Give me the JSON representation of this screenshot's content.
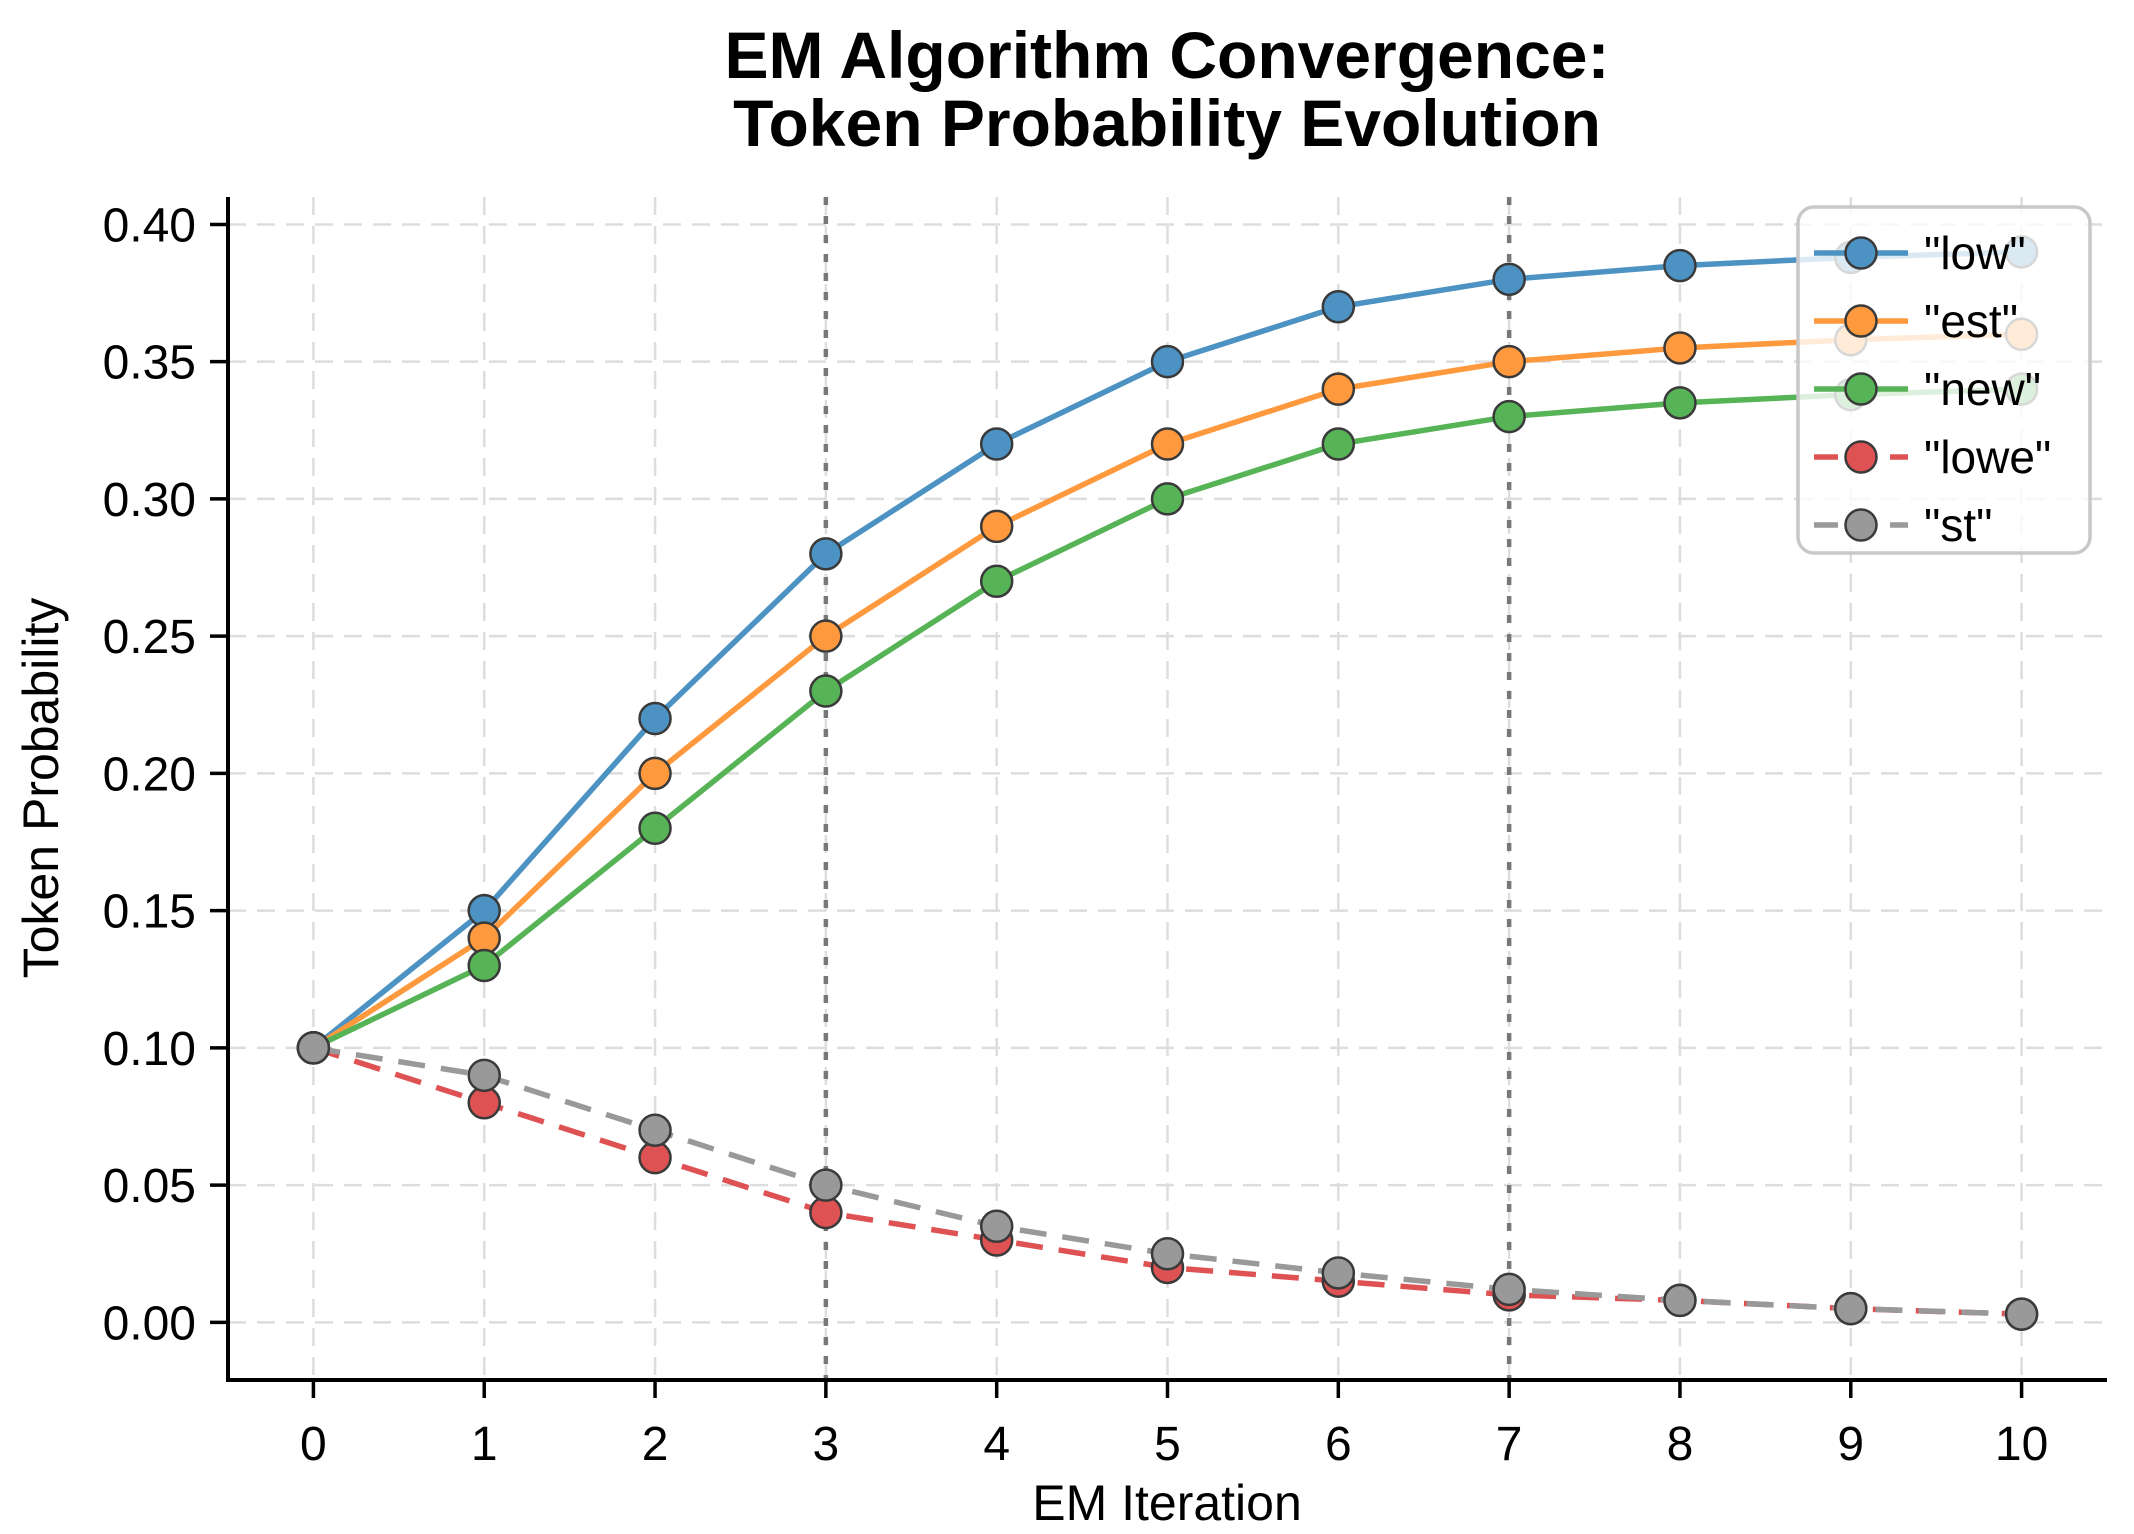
{
  "figure": {
    "title_line1": "EM Algorithm Convergence:",
    "title_line2": "Token Probability Evolution"
  },
  "chart_data": {
    "type": "line",
    "title": "EM Algorithm Convergence:\nToken Probability Evolution",
    "xlabel": "EM Iteration",
    "ylabel": "Token Probability",
    "x": [
      0,
      1,
      2,
      3,
      4,
      5,
      6,
      7,
      8,
      9,
      10
    ],
    "xlim": [
      -0.5,
      10.5
    ],
    "ylim": [
      -0.021,
      0.41
    ],
    "x_tick_labels": [
      "0",
      "1",
      "2",
      "3",
      "4",
      "5",
      "6",
      "7",
      "8",
      "9",
      "10"
    ],
    "y_tick_values": [
      0.0,
      0.05,
      0.1,
      0.15,
      0.2,
      0.25,
      0.3,
      0.35,
      0.4
    ],
    "y_tick_labels": [
      "0.00",
      "0.05",
      "0.10",
      "0.15",
      "0.20",
      "0.25",
      "0.30",
      "0.35",
      "0.40"
    ],
    "grid": "dashed",
    "reference_vlines": [
      3,
      7
    ],
    "legend_position": "upper right",
    "series": [
      {
        "key": "low",
        "name": "\"low\"",
        "style": "solid",
        "color": "#4C92C3",
        "values": [
          0.1,
          0.15,
          0.22,
          0.28,
          0.32,
          0.35,
          0.37,
          0.38,
          0.385,
          0.388,
          0.39
        ]
      },
      {
        "key": "est",
        "name": "\"est\"",
        "style": "solid",
        "color": "#FF993E",
        "values": [
          0.1,
          0.14,
          0.2,
          0.25,
          0.29,
          0.32,
          0.34,
          0.35,
          0.355,
          0.358,
          0.36
        ]
      },
      {
        "key": "new",
        "name": "\"new\"",
        "style": "solid",
        "color": "#56B356",
        "values": [
          0.1,
          0.13,
          0.18,
          0.23,
          0.27,
          0.3,
          0.32,
          0.33,
          0.335,
          0.338,
          0.34
        ]
      },
      {
        "key": "lowe",
        "name": "\"lowe\"",
        "style": "dashed",
        "color": "#DE5253",
        "values": [
          0.1,
          0.08,
          0.06,
          0.04,
          0.03,
          0.02,
          0.015,
          0.01,
          0.008,
          0.005,
          0.003
        ]
      },
      {
        "key": "st",
        "name": "\"st\"",
        "style": "dashed",
        "color": "#999999",
        "values": [
          0.1,
          0.09,
          0.07,
          0.05,
          0.035,
          0.025,
          0.018,
          0.012,
          0.008,
          0.005,
          0.003
        ]
      }
    ],
    "style": {
      "marker_edge_color": "#3a3a3a",
      "grid_color": "#dddddd",
      "reference_vline_color": "#787878",
      "spine_color": "#000000",
      "legend_border_color": "#c8c8c8",
      "legend_background": "rgba(255,255,255,0.8)"
    }
  }
}
